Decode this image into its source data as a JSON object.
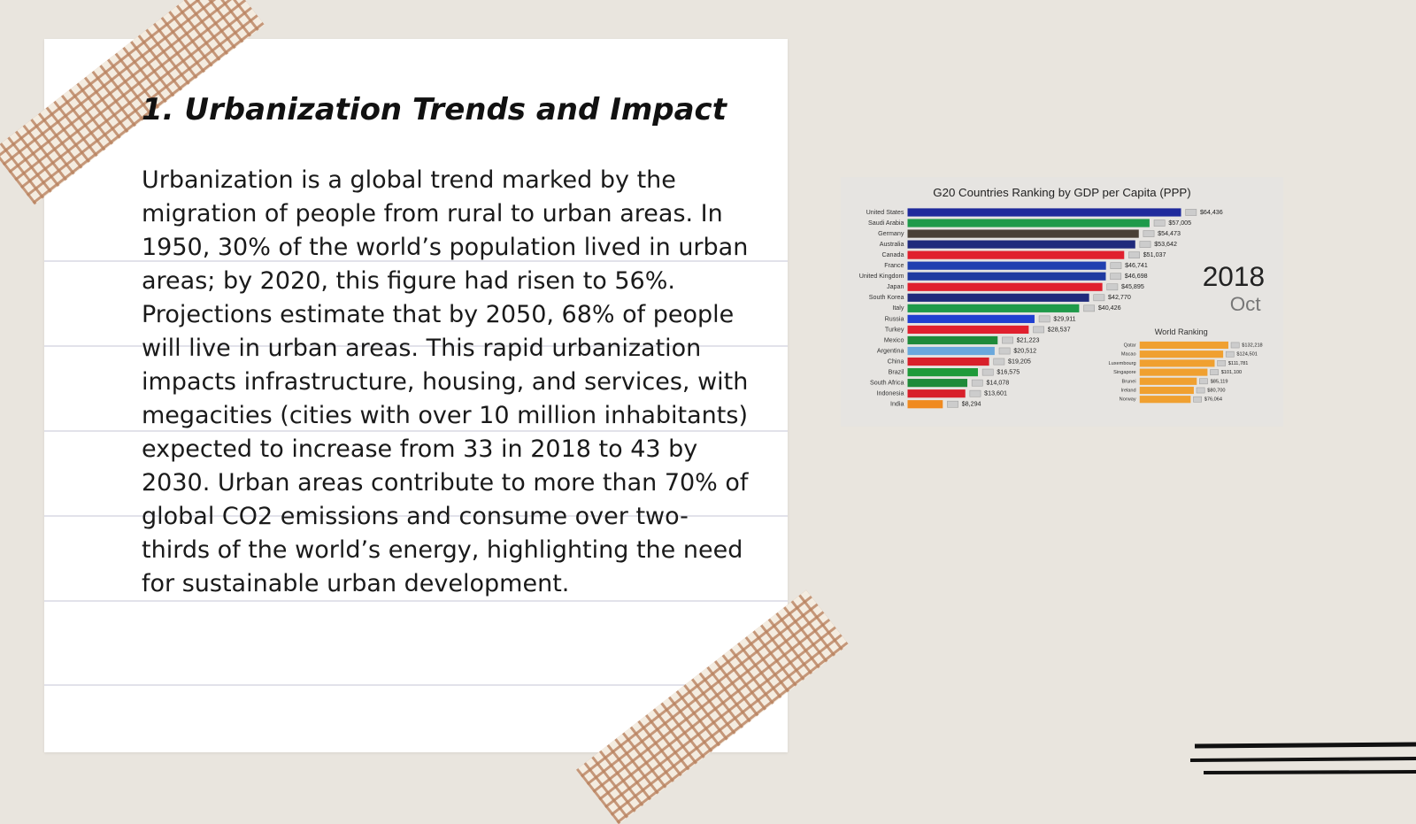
{
  "slide": {
    "heading": "1. Urbanization Trends and Impact",
    "body": "Urbanization is a global trend marked by the migration of people from rural to urban areas. In 1950, 30% of the world’s population lived in urban areas; by 2020, this figure had risen to 56%. Projections estimate that by 2050, 68% of people will live in urban areas. This rapid urbanization impacts infrastructure, housing, and services, with megacities (cities with over 10 million inhabitants) expected to increase from 33 in 2018 to 43 by 2030. Urban areas contribute to more than 70% of global CO2 emissions and consume over two-thirds of the world’s energy, highlighting the need for sustainable urban development."
  },
  "chart_data": {
    "type": "bar",
    "orientation": "horizontal",
    "title": "G20 Countries Ranking by GDP per Capita (PPP)",
    "categories": [
      "United States",
      "Saudi Arabia",
      "Germany",
      "Australia",
      "Canada",
      "France",
      "United Kingdom",
      "Japan",
      "South Korea",
      "Italy",
      "Russia",
      "Turkey",
      "Mexico",
      "Argentina",
      "China",
      "Brazil",
      "South Africa",
      "Indonesia",
      "India"
    ],
    "values": [
      64436,
      57005,
      54473,
      53642,
      51037,
      46741,
      46698,
      45895,
      42770,
      40426,
      29911,
      28537,
      21223,
      20512,
      19205,
      16575,
      14078,
      13601,
      8294
    ],
    "value_labels": [
      "$64,436",
      "$57,005",
      "$54,473",
      "$53,642",
      "$51,037",
      "$46,741",
      "$46,698",
      "$45,895",
      "$42,770",
      "$40,426",
      "$29,911",
      "$28,537",
      "$21,223",
      "$20,512",
      "$19,205",
      "$16,575",
      "$14,078",
      "$13,601",
      "$8,294"
    ],
    "colors": [
      "#1f2a9c",
      "#1f9a4a",
      "#4a4036",
      "#1f2a7c",
      "#e0202e",
      "#2040b0",
      "#1f3aa0",
      "#e0202e",
      "#1f2a7c",
      "#1f9a4a",
      "#2040d0",
      "#e0202e",
      "#1f8a3a",
      "#6aa8dc",
      "#d8202a",
      "#1f9a3a",
      "#1f8a3a",
      "#d8202a",
      "#f08a20"
    ],
    "xlim": [
      0,
      70000
    ],
    "year": "2018",
    "month": "Oct",
    "inset": {
      "title": "World Ranking",
      "categories": [
        "Qatar",
        "Macao",
        "Luxembourg",
        "Singapore",
        "Brunei",
        "Ireland",
        "Norway"
      ],
      "values": [
        132218,
        124501,
        111781,
        101100,
        85119,
        80700,
        76064
      ],
      "value_labels": [
        "$132,218",
        "$124,501",
        "$111,781",
        "$101,100",
        "$85,119",
        "$80,700",
        "$76,064"
      ],
      "color": "#f0a030",
      "xlim": [
        0,
        140000
      ]
    }
  }
}
